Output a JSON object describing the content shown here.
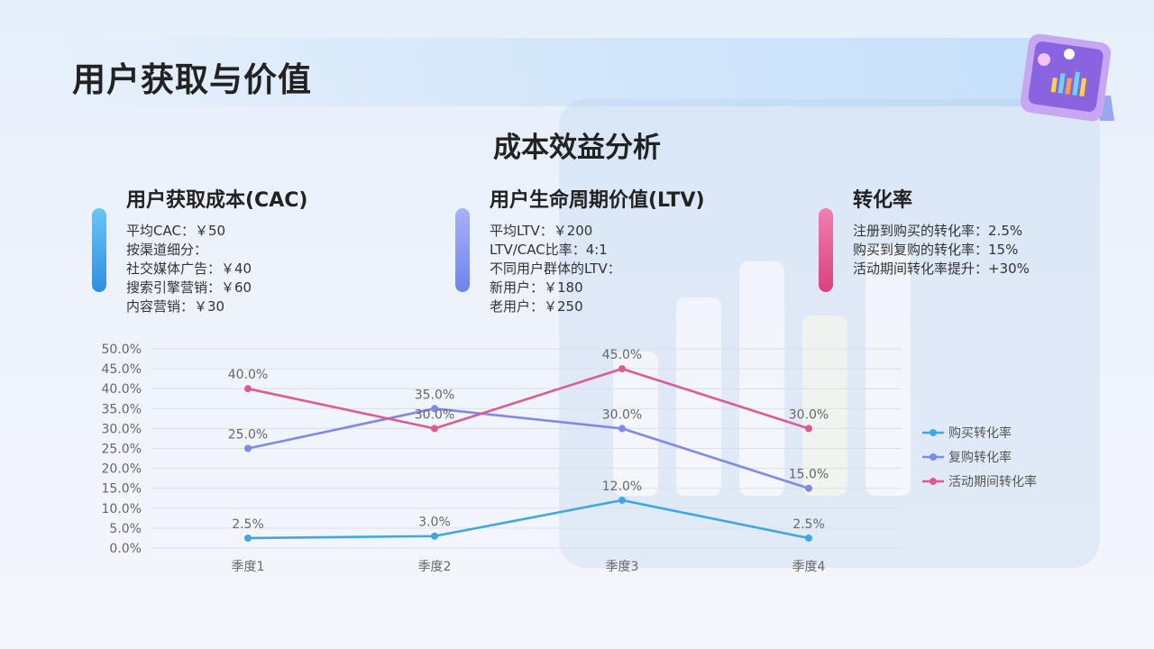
{
  "page": {
    "title": "用户获取与价值",
    "section_title": "成本效益分析"
  },
  "cards": [
    {
      "title": "用户获取成本(CAC)",
      "lines": [
        "平均CAC：￥50",
        "按渠道细分：",
        "社交媒体广告：￥40",
        "搜索引擎营销：￥60",
        "内容营销：￥30"
      ],
      "accent": "#3d9be9"
    },
    {
      "title": "用户生命周期价值(LTV)",
      "lines": [
        "平均LTV：￥200",
        "LTV/CAC比率：4:1",
        "不同用户群体的LTV：",
        "新用户：￥180",
        "老用户：￥250"
      ],
      "accent": "#7b8ff0"
    },
    {
      "title": "转化率",
      "lines": [
        "注册到购买的转化率：2.5%",
        "购买到复购的转化率：15%",
        "活动期间转化率提升：+30%"
      ],
      "accent": "#e2538f"
    }
  ],
  "chart_data": {
    "type": "line",
    "categories": [
      "季度1",
      "季度2",
      "季度3",
      "季度4"
    ],
    "series": [
      {
        "name": "购买转化率",
        "values": [
          2.5,
          3.0,
          12.0,
          2.5
        ],
        "color": "#3fa7e3"
      },
      {
        "name": "复购转化率",
        "values": [
          25.0,
          35.0,
          30.0,
          15.0
        ],
        "color": "#8088e8"
      },
      {
        "name": "活动期间转化率",
        "values": [
          40.0,
          30.0,
          45.0,
          30.0
        ],
        "color": "#dc5b92"
      }
    ],
    "ylim": [
      0,
      50
    ],
    "yticks": [
      "0.0%",
      "5.0%",
      "10.0%",
      "15.0%",
      "20.0%",
      "25.0%",
      "30.0%",
      "35.0%",
      "40.0%",
      "45.0%",
      "50.0%"
    ],
    "data_labels": true,
    "legend_position": "right",
    "grid": true
  }
}
